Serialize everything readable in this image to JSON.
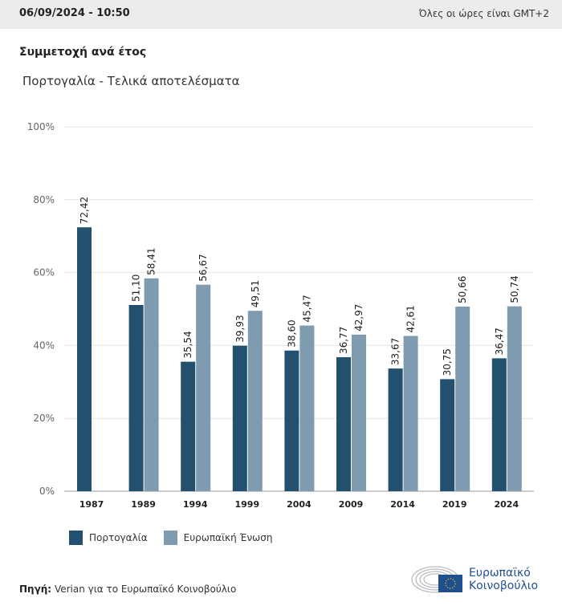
{
  "header": {
    "date": "06/09/2024 - 10:50",
    "timezone": "Όλες οι ώρες είναι GMT+2"
  },
  "title": "Συμμετοχή ανά έτος",
  "subtitle": "Πορτογαλία - Τελικά αποτελέσματα",
  "chart_data": {
    "type": "bar",
    "categories": [
      "1987",
      "1989",
      "1994",
      "1999",
      "2004",
      "2009",
      "2014",
      "2019",
      "2024"
    ],
    "series": [
      {
        "name": "Πορτογαλία",
        "color": "#24506f",
        "values": [
          72.42,
          51.1,
          35.54,
          39.93,
          38.6,
          36.77,
          33.67,
          30.75,
          36.47
        ],
        "labels": [
          "72,42",
          "51,10",
          "35,54",
          "39,93",
          "38,60",
          "36,77",
          "33,67",
          "30,75",
          "36,47"
        ]
      },
      {
        "name": "Ευρωπαϊκή Ένωση",
        "color": "#7f9bb0",
        "values": [
          null,
          58.41,
          56.67,
          49.51,
          45.47,
          42.97,
          42.61,
          50.66,
          50.74
        ],
        "labels": [
          null,
          "58,41",
          "56,67",
          "49,51",
          "45,47",
          "42,97",
          "42,61",
          "50,66",
          "50,74"
        ]
      }
    ],
    "yticks": [
      "0%",
      "20%",
      "40%",
      "60%",
      "80%",
      "100%"
    ],
    "ylim": [
      0,
      100
    ],
    "grid": true,
    "legend": "bottom-left"
  },
  "source": {
    "label": "Πηγή:",
    "text": "Verian για το Ευρωπαϊκό Κοινοβούλιο"
  },
  "logo": {
    "line1": "Ευρωπαϊκό",
    "line2": "Κοινοβούλιο"
  }
}
